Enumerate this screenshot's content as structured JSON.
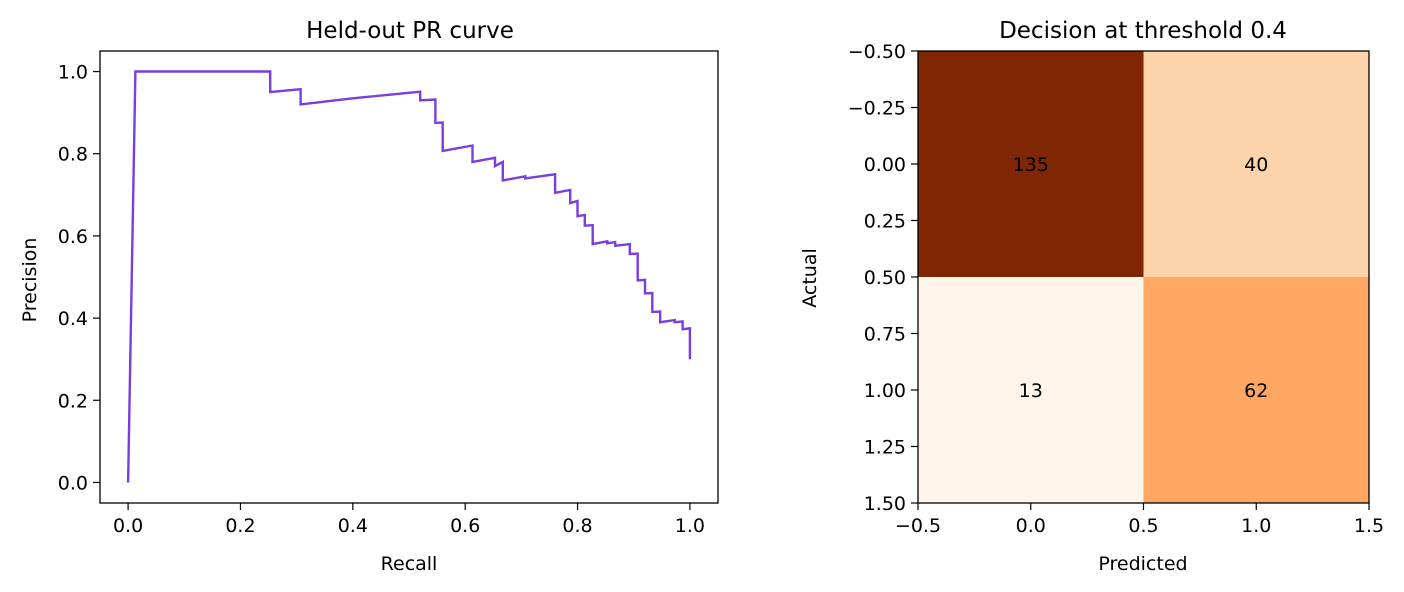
{
  "chart_data": [
    {
      "type": "line",
      "title": "Held-out PR curve",
      "xlabel": "Recall",
      "ylabel": "Precision",
      "xlim": [
        -0.05,
        1.05
      ],
      "ylim": [
        -0.05,
        1.05
      ],
      "xticks": [
        "0.0",
        "0.2",
        "0.4",
        "0.6",
        "0.8",
        "1.0"
      ],
      "yticks": [
        "0.0",
        "0.2",
        "0.4",
        "0.6",
        "0.8",
        "1.0"
      ],
      "grid": false,
      "color": "#7a3de0",
      "series": [
        {
          "points": [
            [
              0.0,
              0.0
            ],
            [
              0.013,
              1.0
            ],
            [
              0.253,
              1.0
            ],
            [
              0.253,
              0.95
            ],
            [
              0.307,
              0.957
            ],
            [
              0.307,
              0.92
            ],
            [
              0.4,
              0.935
            ],
            [
              0.52,
              0.951
            ],
            [
              0.52,
              0.93
            ],
            [
              0.547,
              0.932
            ],
            [
              0.547,
              0.875
            ],
            [
              0.56,
              0.876
            ],
            [
              0.56,
              0.807
            ],
            [
              0.613,
              0.82
            ],
            [
              0.613,
              0.78
            ],
            [
              0.653,
              0.79
            ],
            [
              0.653,
              0.77
            ],
            [
              0.667,
              0.78
            ],
            [
              0.667,
              0.735
            ],
            [
              0.707,
              0.745
            ],
            [
              0.707,
              0.74
            ],
            [
              0.76,
              0.75
            ],
            [
              0.76,
              0.705
            ],
            [
              0.787,
              0.712
            ],
            [
              0.787,
              0.68
            ],
            [
              0.8,
              0.685
            ],
            [
              0.8,
              0.648
            ],
            [
              0.813,
              0.651
            ],
            [
              0.813,
              0.625
            ],
            [
              0.827,
              0.626
            ],
            [
              0.827,
              0.58
            ],
            [
              0.853,
              0.587
            ],
            [
              0.853,
              0.582
            ],
            [
              0.867,
              0.585
            ],
            [
              0.867,
              0.576
            ],
            [
              0.893,
              0.58
            ],
            [
              0.893,
              0.556
            ],
            [
              0.907,
              0.557
            ],
            [
              0.907,
              0.492
            ],
            [
              0.92,
              0.493
            ],
            [
              0.92,
              0.46
            ],
            [
              0.933,
              0.461
            ],
            [
              0.933,
              0.415
            ],
            [
              0.947,
              0.416
            ],
            [
              0.947,
              0.39
            ],
            [
              0.973,
              0.395
            ],
            [
              0.973,
              0.39
            ],
            [
              0.987,
              0.392
            ],
            [
              0.987,
              0.373
            ],
            [
              1.0,
              0.375
            ],
            [
              1.0,
              0.3
            ]
          ]
        }
      ]
    },
    {
      "type": "heatmap",
      "title": "Decision at threshold 0.4",
      "xlabel": "Predicted",
      "ylabel": "Actual",
      "xlim": [
        -0.5,
        1.5
      ],
      "ylim": [
        1.5,
        -0.5
      ],
      "xticks": [
        "−0.5",
        "0.0",
        "0.5",
        "1.0",
        "1.5"
      ],
      "yticks": [
        "−0.50",
        "−0.25",
        "0.00",
        "0.25",
        "0.50",
        "0.75",
        "1.00",
        "1.25",
        "1.50"
      ],
      "colormap": "Oranges",
      "values": [
        [
          135,
          40
        ],
        [
          13,
          62
        ]
      ],
      "cell_labels": [
        [
          "135",
          "40"
        ],
        [
          "13",
          "62"
        ]
      ],
      "cell_colors": [
        [
          "#7f2704",
          "#fdd3a9"
        ],
        [
          "#fff5eb",
          "#fda762"
        ]
      ]
    }
  ]
}
